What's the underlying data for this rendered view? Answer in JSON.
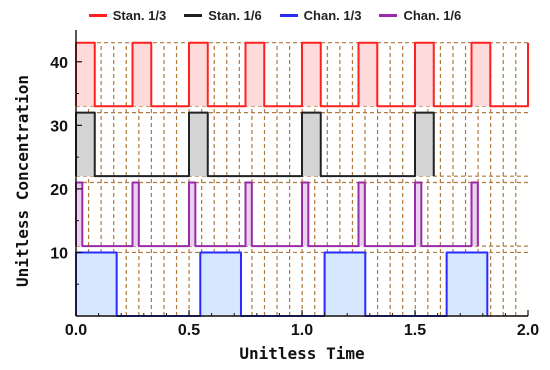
{
  "chart_data": {
    "type": "line",
    "xlabel": "Unitless Time",
    "ylabel": "Unitless Concentration",
    "xlim": [
      0,
      2
    ],
    "ylim": [
      0,
      45
    ],
    "x_ticks": [
      "0.0",
      "0.5",
      "1.0",
      "1.5",
      "2.0"
    ],
    "y_ticks": [
      "10",
      "20",
      "30",
      "40"
    ],
    "legend_position": "top",
    "reference_lines": {
      "color": "#b07a3e",
      "horizontal_levels": [
        0,
        10,
        11,
        21,
        22,
        32,
        33,
        43
      ],
      "vertical_step": 0.0556
    },
    "series": [
      {
        "name": "Stan. 1/3",
        "color": "#ff2020",
        "fill": "#ffdada",
        "low": 33,
        "high": 43,
        "pulse_starts": [
          0.0,
          0.25,
          0.5,
          0.75,
          1.0,
          1.25,
          1.5,
          1.75
        ],
        "pulse_width": 0.083,
        "tail_to": 2.0
      },
      {
        "name": "Stan. 1/6",
        "color": "#222222",
        "fill": "#d4d4d4",
        "low": 22,
        "high": 32,
        "pulse_starts": [
          0.0,
          0.5,
          1.0,
          1.5
        ],
        "pulse_width": 0.083
      },
      {
        "name": "Chan. 1/3",
        "color": "#2a2aff",
        "fill": "#d6e8ff",
        "low": 0,
        "high": 10,
        "pulse_starts": [
          0.0,
          0.55,
          1.1,
          1.64
        ],
        "pulse_width": 0.18
      },
      {
        "name": "Chan. 1/6",
        "color": "#9a2aa8",
        "fill": "#ead2ee",
        "low": 11,
        "high": 21,
        "pulse_starts": [
          0.0,
          0.25,
          0.5,
          0.75,
          1.0,
          1.25,
          1.5,
          1.75
        ],
        "pulse_width": 0.028
      }
    ]
  }
}
